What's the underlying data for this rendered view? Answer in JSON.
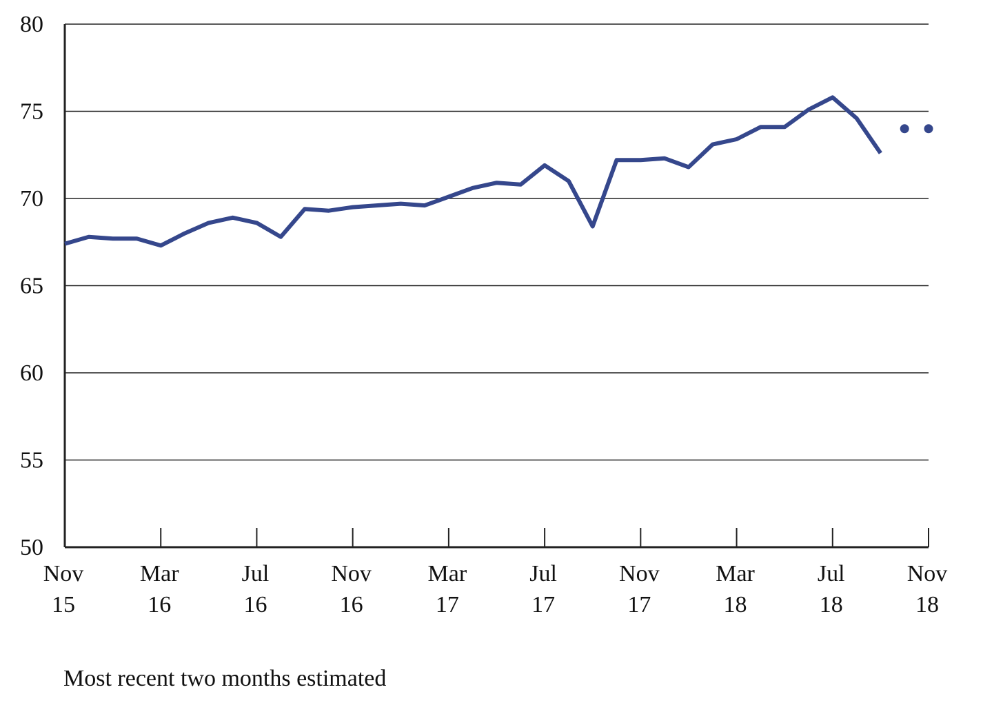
{
  "chart_data": {
    "type": "line",
    "title": "",
    "xlabel": "",
    "ylabel": "",
    "ylim": [
      50,
      80
    ],
    "yticks": [
      "80",
      "75",
      "70",
      "65",
      "60",
      "55",
      "50"
    ],
    "xtick_labels": [
      {
        "month": "Nov",
        "year": "15"
      },
      {
        "month": "Mar",
        "year": "16"
      },
      {
        "month": "Jul",
        "year": "16"
      },
      {
        "month": "Nov",
        "year": "16"
      },
      {
        "month": "Mar",
        "year": "17"
      },
      {
        "month": "Jul",
        "year": "17"
      },
      {
        "month": "Nov",
        "year": "17"
      },
      {
        "month": "Mar",
        "year": "18"
      },
      {
        "month": "Jul",
        "year": "18"
      },
      {
        "month": "Nov",
        "year": "18"
      }
    ],
    "grid": true,
    "line_color": "#35478c",
    "series": [
      {
        "style": "solid",
        "x": [
          "2015-11",
          "2015-12",
          "2016-01",
          "2016-02",
          "2016-03",
          "2016-04",
          "2016-05",
          "2016-06",
          "2016-07",
          "2016-08",
          "2016-09",
          "2016-10",
          "2016-11",
          "2016-12",
          "2017-01",
          "2017-02",
          "2017-03",
          "2017-04",
          "2017-05",
          "2017-06",
          "2017-07",
          "2017-08",
          "2017-09",
          "2017-10",
          "2017-11",
          "2017-12",
          "2018-01",
          "2018-02",
          "2018-03",
          "2018-04",
          "2018-05",
          "2018-06",
          "2018-07",
          "2018-08",
          "2018-09"
        ],
        "values": [
          67.4,
          67.8,
          67.7,
          67.7,
          67.3,
          68.0,
          68.6,
          68.9,
          68.6,
          67.8,
          69.4,
          69.3,
          69.5,
          69.6,
          69.7,
          69.6,
          70.1,
          70.6,
          70.9,
          70.8,
          71.9,
          71.0,
          68.4,
          72.2,
          72.2,
          72.3,
          71.8,
          73.1,
          73.4,
          74.1,
          74.1,
          75.1,
          75.8,
          74.6,
          72.6
        ]
      },
      {
        "style": "dots",
        "x": [
          "2018-10",
          "2018-11"
        ],
        "values": [
          74.0,
          74.0
        ]
      }
    ]
  },
  "footnote": "Most recent two months estimated"
}
